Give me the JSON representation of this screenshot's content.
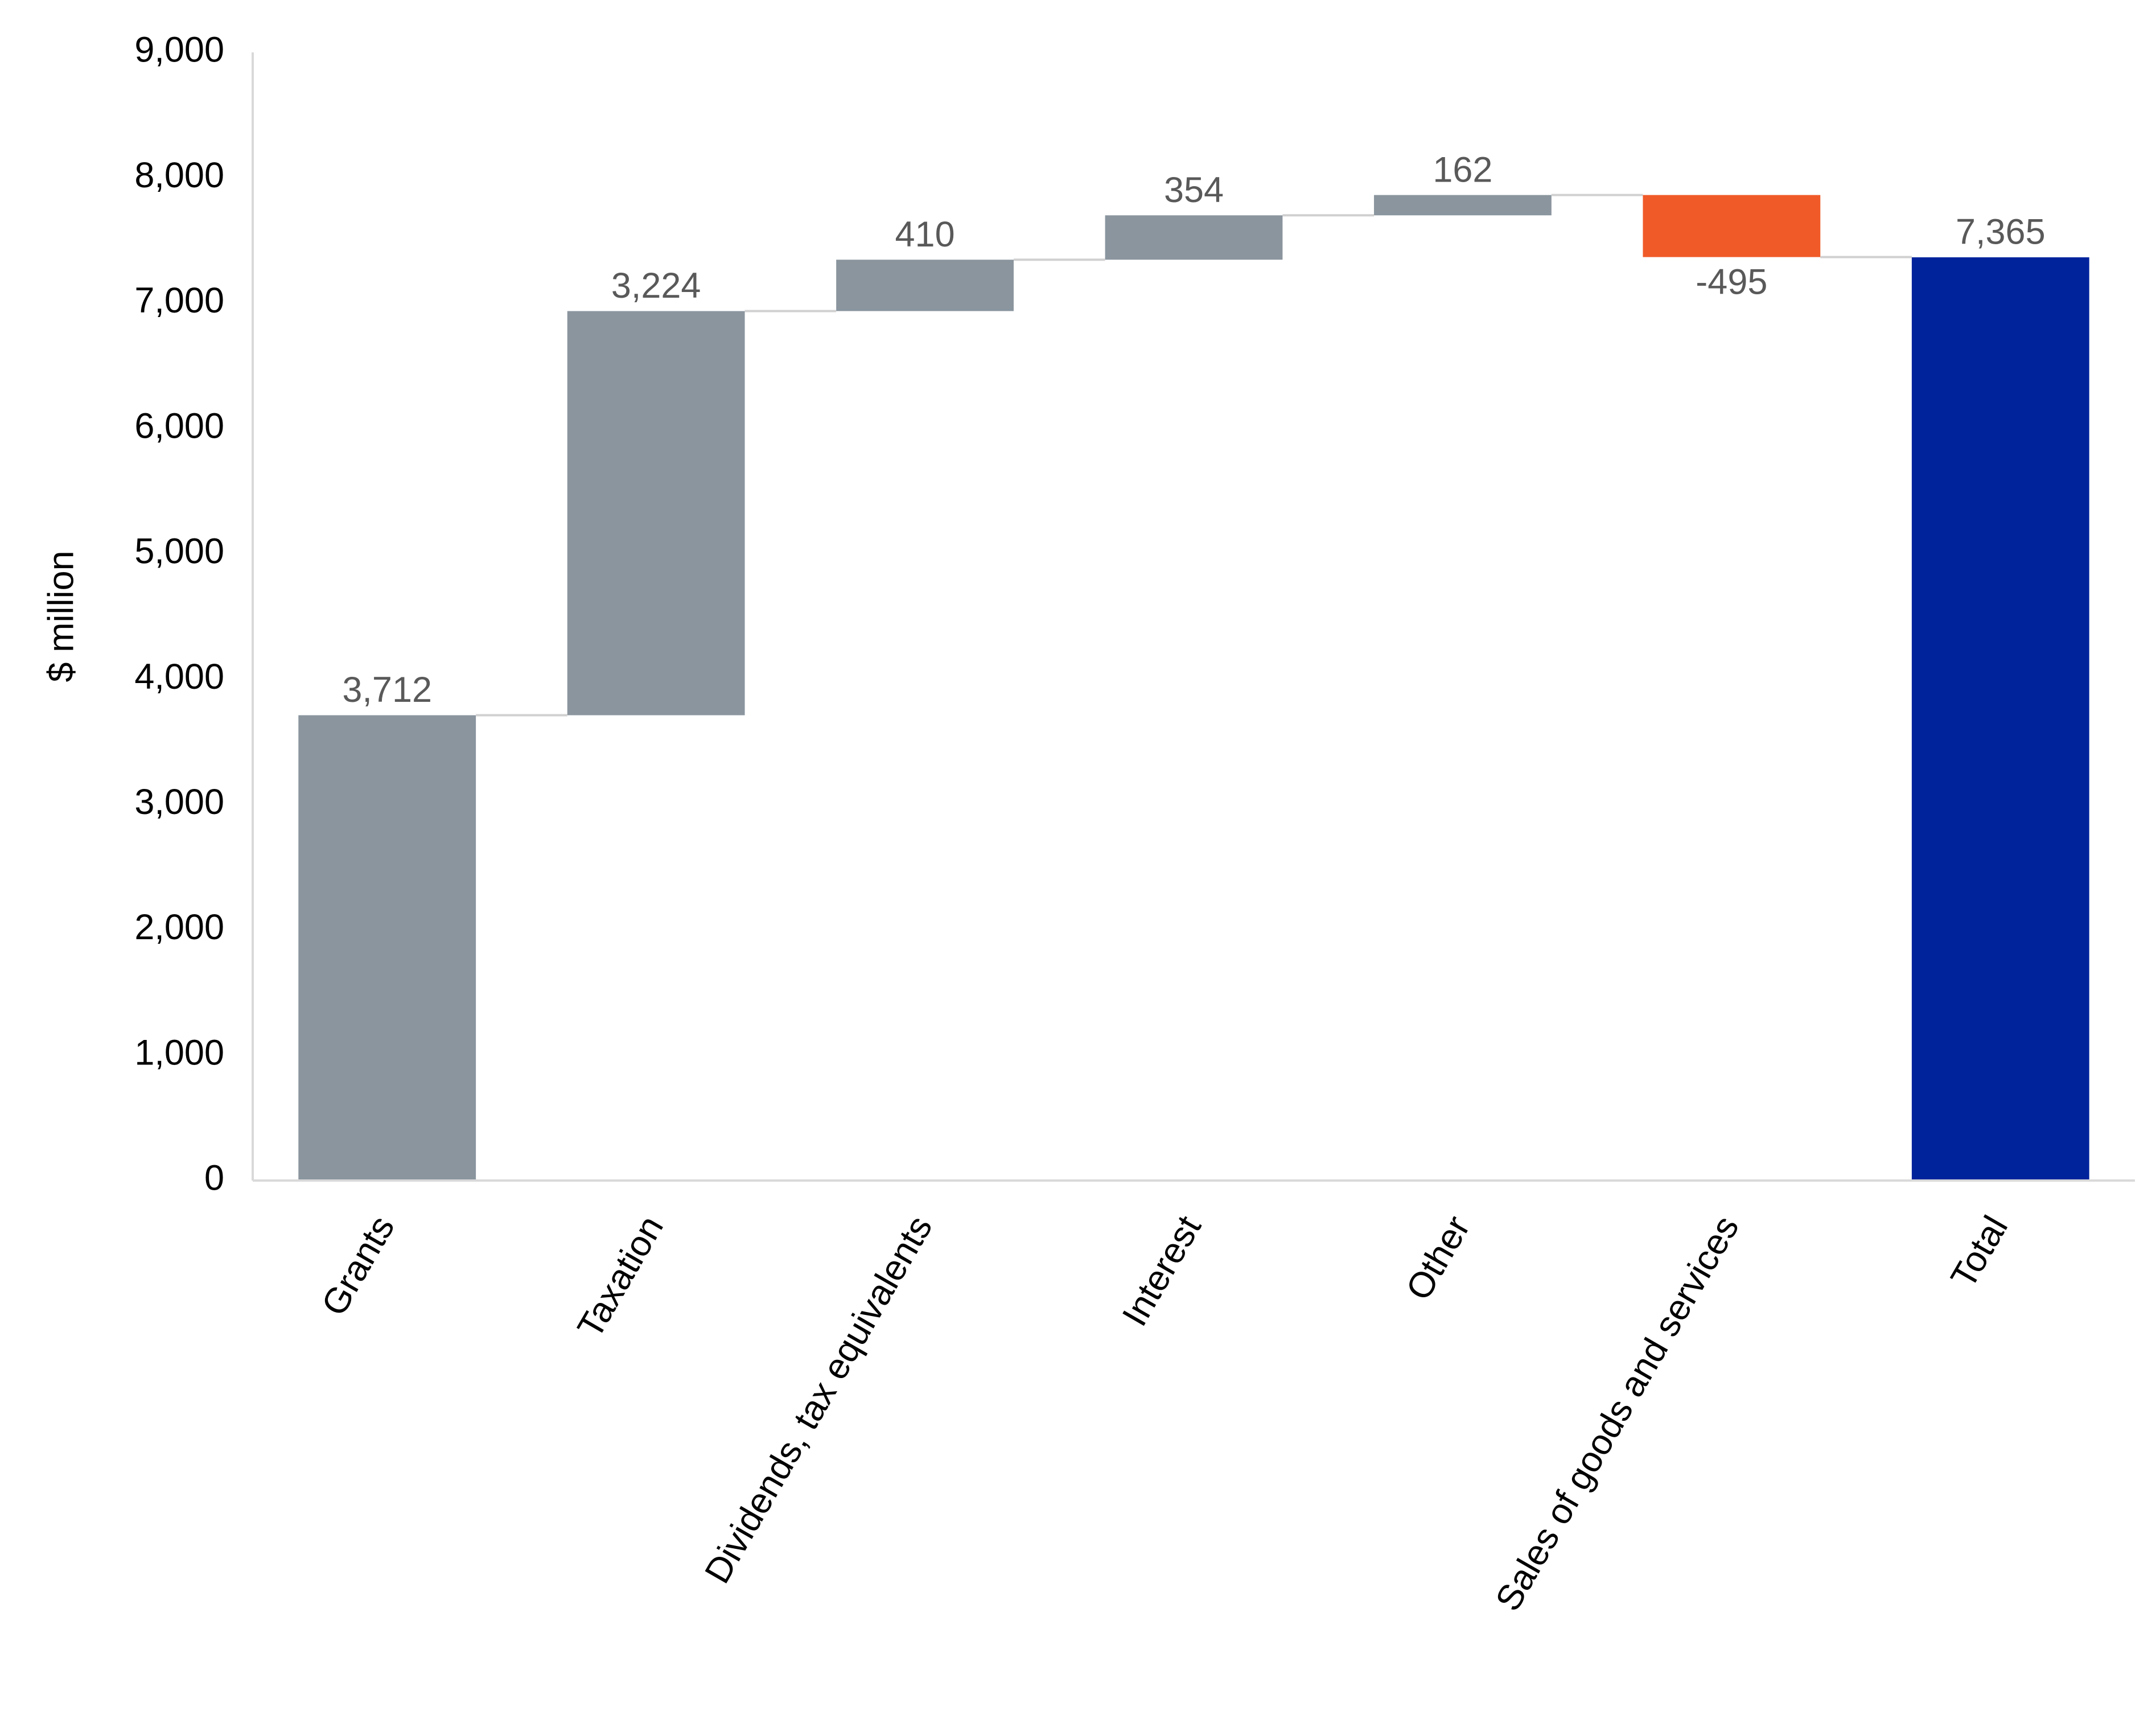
{
  "chart_data": {
    "type": "waterfall",
    "y_axis_label": "$ million",
    "categories": [
      "Grants",
      "Taxation",
      "Dividends, tax equivalents",
      "Interest",
      "Other",
      "Sales of goods and services",
      "Total"
    ],
    "values": [
      3712,
      3224,
      410,
      354,
      162,
      -495,
      7365
    ],
    "value_labels": [
      "3,712",
      "3,224",
      "410",
      "354",
      "162",
      "-495",
      "7,365"
    ],
    "colors": [
      "#8a959e",
      "#8a959e",
      "#8a959e",
      "#8a959e",
      "#8a959e",
      "#f05a28",
      "#00239c"
    ],
    "total_last": true,
    "ylim": [
      0,
      9000
    ],
    "yticks": [
      0,
      {
        "value": 1000,
        "label": "1,000"
      },
      {
        "value": 2000,
        "label": "2,000"
      },
      {
        "value": 3000,
        "label": "3,000"
      },
      {
        "value": 4000,
        "label": "4,000"
      },
      {
        "value": 5000,
        "label": "5,000"
      },
      {
        "value": 6000,
        "label": "6,000"
      },
      {
        "value": 7000,
        "label": "7,000"
      },
      {
        "value": 8000,
        "label": "8,000"
      },
      {
        "value": 9000,
        "label": "9,000"
      }
    ],
    "grid": false
  }
}
